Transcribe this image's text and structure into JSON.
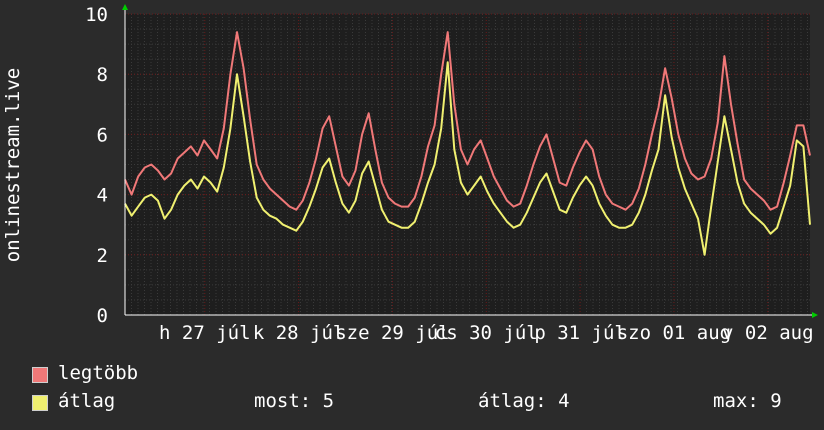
{
  "chart_data": {
    "type": "line",
    "ylabel": "onlinestream.live",
    "ylim": [
      0,
      10
    ],
    "y_ticks": [
      "0",
      "2",
      "4",
      "6",
      "8",
      "10"
    ],
    "x_tick_labels": [
      "h 27 júl",
      "k 28 júl",
      "sze 29 júl",
      "cs 30 júl",
      "p 31 júl",
      "szo 01 aug",
      "v 02 aug"
    ],
    "grid": true,
    "series": [
      {
        "name": "legtöbb",
        "color": "#f07878",
        "values": [
          4.5,
          4.0,
          4.6,
          4.9,
          5.0,
          4.8,
          4.5,
          4.7,
          5.2,
          5.4,
          5.6,
          5.3,
          5.8,
          5.5,
          5.2,
          6.2,
          8.0,
          9.4,
          8.2,
          6.5,
          5.0,
          4.5,
          4.2,
          4.0,
          3.8,
          3.6,
          3.5,
          3.8,
          4.4,
          5.2,
          6.2,
          6.6,
          5.6,
          4.6,
          4.3,
          4.8,
          6.0,
          6.7,
          5.5,
          4.4,
          3.9,
          3.7,
          3.6,
          3.6,
          3.9,
          4.6,
          5.6,
          6.3,
          8.0,
          9.4,
          7.0,
          5.5,
          5.0,
          5.5,
          5.8,
          5.2,
          4.6,
          4.2,
          3.8,
          3.6,
          3.7,
          4.3,
          5.0,
          5.6,
          6.0,
          5.2,
          4.4,
          4.3,
          4.9,
          5.4,
          5.8,
          5.5,
          4.6,
          4.0,
          3.7,
          3.6,
          3.5,
          3.7,
          4.2,
          5.0,
          6.0,
          6.9,
          8.2,
          7.2,
          6.0,
          5.2,
          4.7,
          4.5,
          4.6,
          5.2,
          6.4,
          8.6,
          7.0,
          5.7,
          4.5,
          4.2,
          4.0,
          3.8,
          3.5,
          3.6,
          4.4,
          5.3,
          6.3,
          6.3,
          5.3
        ]
      },
      {
        "name": "átlag",
        "color": "#f0f070",
        "values": [
          3.7,
          3.3,
          3.6,
          3.9,
          4.0,
          3.8,
          3.2,
          3.5,
          4.0,
          4.3,
          4.5,
          4.2,
          4.6,
          4.4,
          4.1,
          4.9,
          6.2,
          8.0,
          6.6,
          5.1,
          3.9,
          3.5,
          3.3,
          3.2,
          3.0,
          2.9,
          2.8,
          3.1,
          3.6,
          4.2,
          4.9,
          5.2,
          4.4,
          3.7,
          3.4,
          3.8,
          4.7,
          5.1,
          4.3,
          3.5,
          3.1,
          3.0,
          2.9,
          2.9,
          3.1,
          3.7,
          4.4,
          5.0,
          6.2,
          8.4,
          5.5,
          4.4,
          4.0,
          4.3,
          4.6,
          4.1,
          3.7,
          3.4,
          3.1,
          2.9,
          3.0,
          3.4,
          3.9,
          4.4,
          4.7,
          4.1,
          3.5,
          3.4,
          3.9,
          4.3,
          4.6,
          4.3,
          3.7,
          3.3,
          3.0,
          2.9,
          2.9,
          3.0,
          3.4,
          4.0,
          4.8,
          5.5,
          7.3,
          5.9,
          4.9,
          4.2,
          3.7,
          3.2,
          2.0,
          3.6,
          5.1,
          6.6,
          5.5,
          4.4,
          3.7,
          3.4,
          3.2,
          3.0,
          2.7,
          2.9,
          3.6,
          4.3,
          5.8,
          5.6,
          3.0
        ]
      }
    ]
  },
  "legend": {
    "max_label": "legtöbb",
    "avg_label": "átlag",
    "now_stat": "most: 5",
    "avg_stat": "átlag: 4",
    "max_stat": "max: 9"
  },
  "colors": {
    "background": "#2b2b2b",
    "plot_background": "#1e1e1e",
    "minor_grid": "#3a3a3a",
    "major_grid": "#6a1a1a",
    "axis_arrow": "#00cc00"
  }
}
